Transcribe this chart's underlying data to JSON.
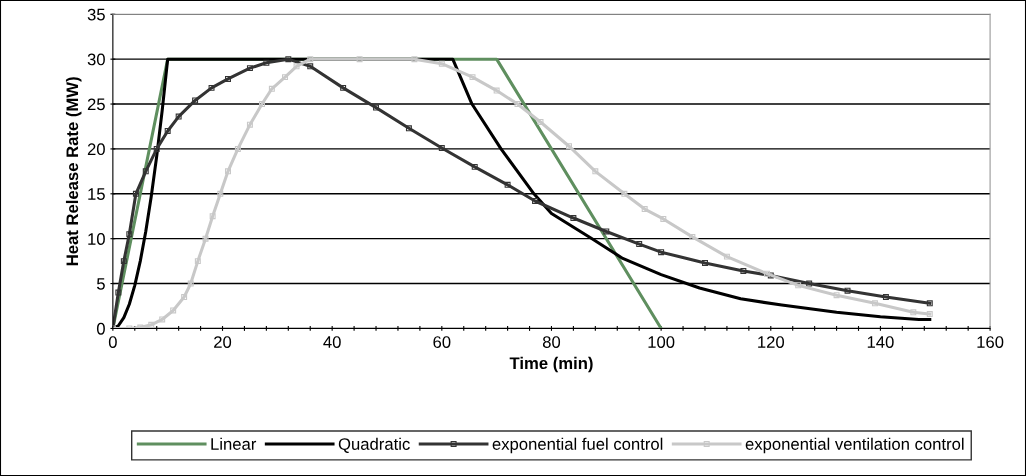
{
  "chart_data": {
    "type": "line",
    "xlabel": "Time (min)",
    "ylabel": "Heat Release Rate (MW)",
    "xlim": [
      0,
      160
    ],
    "ylim": [
      0,
      35
    ],
    "xticks": [
      0,
      {
        "value": 4,
        "label": null
      },
      {
        "value": 8,
        "label": null
      },
      {
        "value": 12,
        "label": null
      },
      {
        "value": 16,
        "label": null
      },
      20,
      {
        "value": 24,
        "label": null
      },
      {
        "value": 28,
        "label": null
      },
      {
        "value": 32,
        "label": null
      },
      {
        "value": 36,
        "label": null
      },
      40,
      {
        "value": 44,
        "label": null
      },
      {
        "value": 48,
        "label": null
      },
      {
        "value": 52,
        "label": null
      },
      {
        "value": 56,
        "label": null
      },
      60,
      {
        "value": 64,
        "label": null
      },
      {
        "value": 68,
        "label": null
      },
      {
        "value": 72,
        "label": null
      },
      {
        "value": 76,
        "label": null
      },
      80,
      {
        "value": 84,
        "label": null
      },
      {
        "value": 88,
        "label": null
      },
      {
        "value": 92,
        "label": null
      },
      {
        "value": 96,
        "label": null
      },
      100,
      {
        "value": 104,
        "label": null
      },
      {
        "value": 108,
        "label": null
      },
      {
        "value": 112,
        "label": null
      },
      {
        "value": 116,
        "label": null
      },
      120,
      {
        "value": 124,
        "label": null
      },
      {
        "value": 128,
        "label": null
      },
      {
        "value": 132,
        "label": null
      },
      {
        "value": 136,
        "label": null
      },
      140,
      {
        "value": 144,
        "label": null
      },
      {
        "value": 148,
        "label": null
      },
      {
        "value": 152,
        "label": null
      },
      {
        "value": 156,
        "label": null
      },
      160
    ],
    "yticks": [
      0,
      5,
      10,
      15,
      20,
      25,
      30,
      35
    ],
    "grid": "y",
    "legend": "bottom",
    "series": [
      {
        "name": "Linear",
        "color": "#5f8f5f",
        "x": [
          0,
          10,
          70,
          100
        ],
        "values": [
          0,
          30,
          30,
          0
        ]
      },
      {
        "name": "Quadratic",
        "color": "#000000",
        "x": [
          0,
          1,
          2,
          3,
          4,
          5,
          6,
          7,
          8,
          9,
          10,
          62,
          65.5,
          70.8,
          76.8,
          80,
          87.4,
          93,
          100,
          107,
          114.5,
          122,
          132,
          140,
          147,
          149
        ],
        "values": [
          0,
          0.3,
          1.2,
          2.7,
          4.8,
          7.5,
          10.8,
          14.7,
          19.2,
          24.3,
          30,
          30,
          25,
          20,
          15,
          12.8,
          10,
          7.8,
          6,
          4.5,
          3.3,
          2.6,
          1.8,
          1.3,
          1,
          1
        ]
      },
      {
        "name": "exponential fuel control",
        "color": "#333333",
        "marker": "square",
        "x": [
          0,
          1,
          2,
          3,
          4.2,
          6,
          8,
          10,
          12,
          15,
          18,
          21,
          25,
          28,
          32,
          36,
          42,
          48,
          54,
          60,
          66,
          72,
          77,
          84,
          90,
          96,
          100,
          108,
          115,
          120,
          127,
          134,
          141,
          149
        ],
        "values": [
          0,
          4,
          7.5,
          10.5,
          15,
          17.5,
          20,
          22,
          23.6,
          25.4,
          26.8,
          27.8,
          29,
          29.6,
          30,
          29.2,
          26.8,
          24.6,
          22.3,
          20.1,
          18,
          16,
          14.2,
          12.3,
          10.8,
          9.4,
          8.5,
          7.3,
          6.4,
          5.9,
          5,
          4.2,
          3.5,
          2.8
        ]
      },
      {
        "name": "exponential ventilation control",
        "color": "#c8c8c8",
        "marker": "square",
        "x": [
          0,
          3,
          5,
          7,
          9,
          11,
          13,
          14.2,
          15.5,
          16.9,
          18.2,
          19.6,
          21,
          22.8,
          25,
          27.2,
          29,
          31.4,
          33.5,
          36,
          45,
          55,
          60,
          65.6,
          70,
          73.8,
          78,
          83.2,
          88,
          93.3,
          97,
          100.4,
          105.7,
          112,
          119.3,
          125,
          132,
          139,
          146,
          149
        ],
        "values": [
          0,
          0,
          0.1,
          0.4,
          1,
          2,
          3.5,
          5,
          7.5,
          10,
          12.5,
          15,
          17.5,
          20,
          22.7,
          25,
          26.7,
          28,
          29.2,
          30,
          30,
          30,
          29.5,
          28,
          26.5,
          25,
          23,
          20.3,
          17.5,
          15,
          13.3,
          12.2,
          10.2,
          8,
          6.1,
          4.8,
          3.7,
          2.8,
          1.8,
          1.6
        ]
      }
    ]
  }
}
